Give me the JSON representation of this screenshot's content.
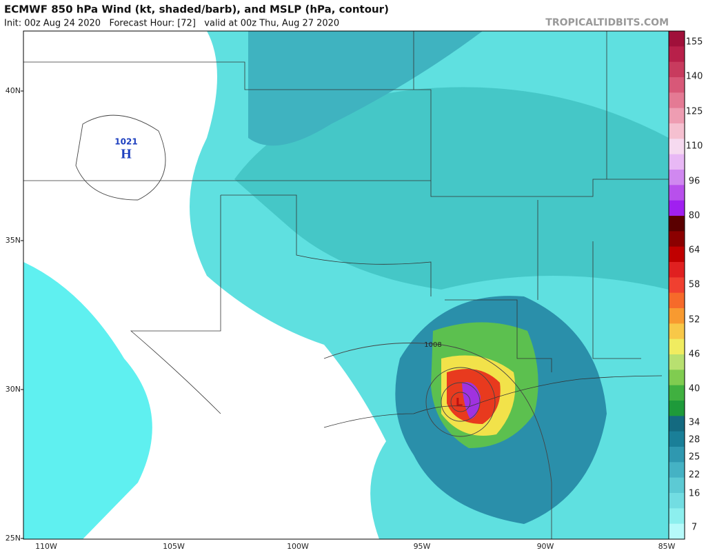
{
  "header": {
    "title": "ECMWF 850 hPa Wind (kt, shaded/barb), and MSLP (hPa, contour)",
    "subtitle": "Init: 00z Aug 24 2020   Forecast Hour: [72]   valid at 00z Thu, Aug 27 2020",
    "watermark": "TROPICALTIDBITS.COM"
  },
  "map": {
    "lat_labels": [
      "40N",
      "35N",
      "30N",
      "25N"
    ],
    "lon_labels": [
      "110W",
      "105W",
      "100W",
      "95W",
      "90W",
      "85W"
    ],
    "high": {
      "pressure": "1021",
      "symbol": "H"
    },
    "low": {
      "symbol": "L"
    },
    "contour_label": "1008"
  },
  "colorbar": {
    "labels": [
      "155",
      "140",
      "125",
      "110",
      "96",
      "80",
      "64",
      "58",
      "52",
      "46",
      "40",
      "34",
      "28",
      "25",
      "22",
      "16",
      "7"
    ]
  }
}
